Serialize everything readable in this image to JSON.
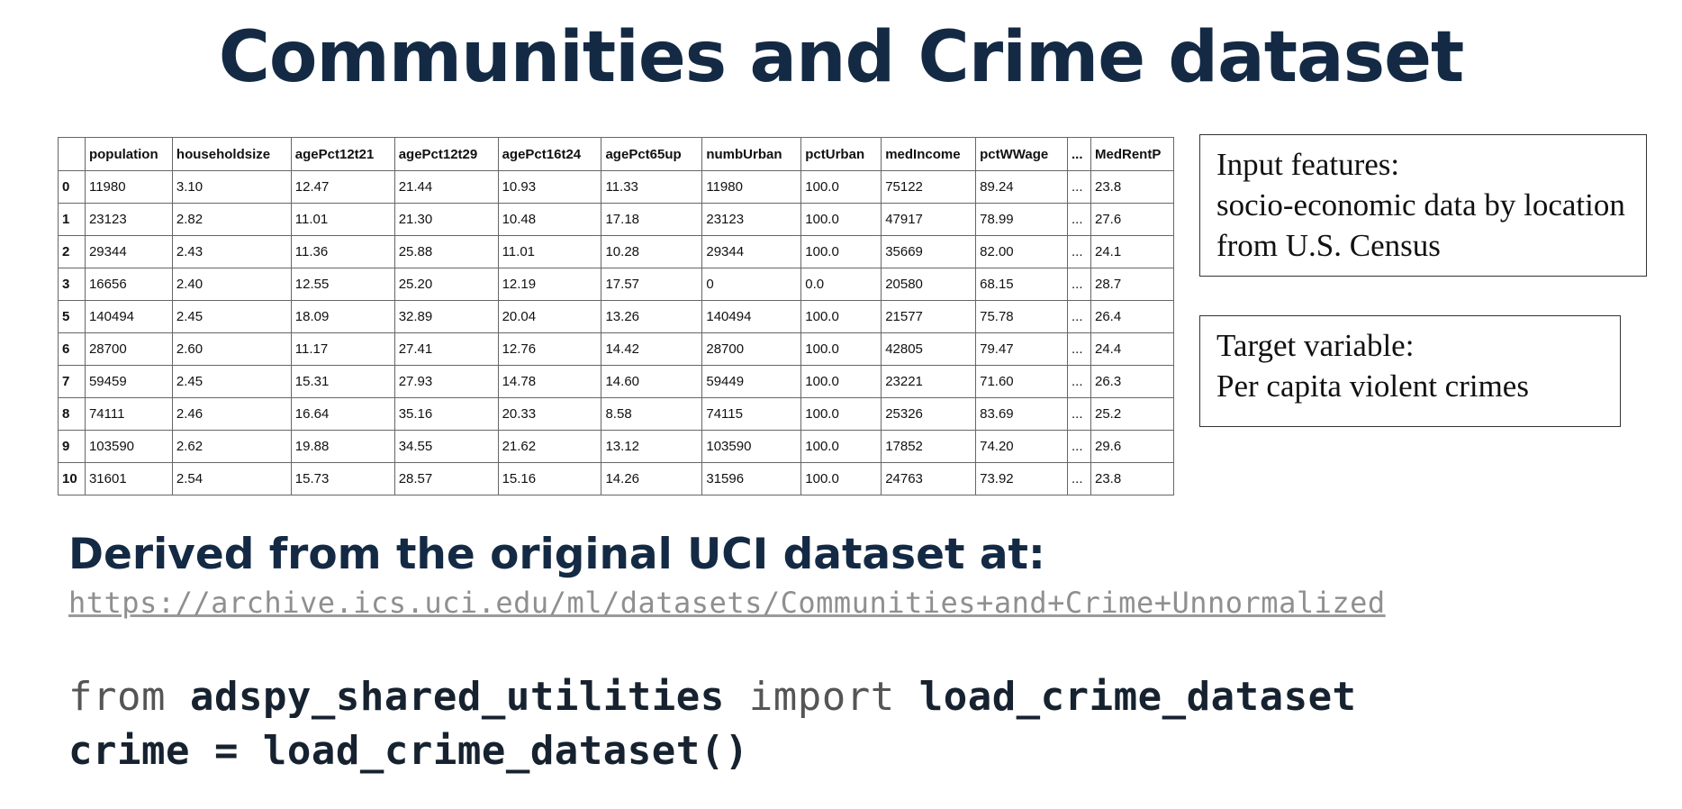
{
  "slide": {
    "title": "Communities and Crime dataset",
    "derived_heading": "Derived from the original UCI dataset at:",
    "url": "https://archive.ics.uci.edu/ml/datasets/Communities+and+Crime+Unnormalized"
  },
  "table": {
    "columns": [
      "",
      "population",
      "householdsize",
      "agePct12t21",
      "agePct12t29",
      "agePct16t24",
      "agePct65up",
      "numbUrban",
      "pctUrban",
      "medIncome",
      "pctWWage",
      "...",
      "MedRentP"
    ],
    "rows": [
      [
        "0",
        "11980",
        "3.10",
        "12.47",
        "21.44",
        "10.93",
        "11.33",
        "11980",
        "100.0",
        "75122",
        "89.24",
        "...",
        "23.8"
      ],
      [
        "1",
        "23123",
        "2.82",
        "11.01",
        "21.30",
        "10.48",
        "17.18",
        "23123",
        "100.0",
        "47917",
        "78.99",
        "...",
        "27.6"
      ],
      [
        "2",
        "29344",
        "2.43",
        "11.36",
        "25.88",
        "11.01",
        "10.28",
        "29344",
        "100.0",
        "35669",
        "82.00",
        "...",
        "24.1"
      ],
      [
        "3",
        "16656",
        "2.40",
        "12.55",
        "25.20",
        "12.19",
        "17.57",
        "0",
        "0.0",
        "20580",
        "68.15",
        "...",
        "28.7"
      ],
      [
        "5",
        "140494",
        "2.45",
        "18.09",
        "32.89",
        "20.04",
        "13.26",
        "140494",
        "100.0",
        "21577",
        "75.78",
        "...",
        "26.4"
      ],
      [
        "6",
        "28700",
        "2.60",
        "11.17",
        "27.41",
        "12.76",
        "14.42",
        "28700",
        "100.0",
        "42805",
        "79.47",
        "...",
        "24.4"
      ],
      [
        "7",
        "59459",
        "2.45",
        "15.31",
        "27.93",
        "14.78",
        "14.60",
        "59449",
        "100.0",
        "23221",
        "71.60",
        "...",
        "26.3"
      ],
      [
        "8",
        "74111",
        "2.46",
        "16.64",
        "35.16",
        "20.33",
        "8.58",
        "74115",
        "100.0",
        "25326",
        "83.69",
        "...",
        "25.2"
      ],
      [
        "9",
        "103590",
        "2.62",
        "19.88",
        "34.55",
        "21.62",
        "13.12",
        "103590",
        "100.0",
        "17852",
        "74.20",
        "...",
        "29.6"
      ],
      [
        "10",
        "31601",
        "2.54",
        "15.73",
        "28.57",
        "15.16",
        "14.26",
        "31596",
        "100.0",
        "24763",
        "73.92",
        "...",
        "23.8"
      ]
    ]
  },
  "input_box": {
    "line1": "Input features:",
    "line2": "socio-economic data by location",
    "line3": "from U.S. Census"
  },
  "target_box": {
    "line1": "Target variable:",
    "line2": "Per capita violent crimes"
  },
  "code": {
    "line1_kw1": "from",
    "line1_module": "adspy_shared_utilities",
    "line1_kw2": "import",
    "line1_func": "load_crime_dataset",
    "line2": "crime = load_crime_dataset()"
  }
}
